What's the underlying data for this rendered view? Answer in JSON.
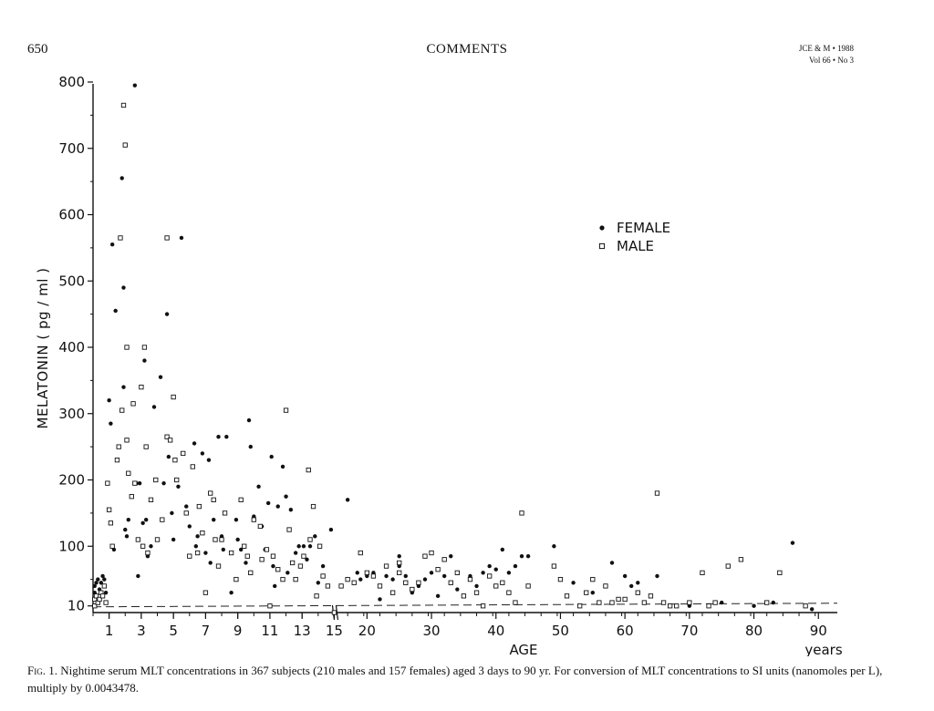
{
  "header": {
    "page_number": "650",
    "section": "COMMENTS",
    "journal_line1": "JCE & M • 1988",
    "journal_line2": "Vol 66 • No 3"
  },
  "caption": {
    "label": "Fig. 1.",
    "text": "Nightime serum MLT concentrations in 367 subjects (210 males and 157 females) aged 3 days to 90 yr. For conversion of MLT concentrations to SI units (nanomoles per L), multiply by 0.0043478."
  },
  "chart_data": {
    "type": "scatter",
    "ylabel": "MELATONIN ( pg / ml )",
    "xlabel": "AGE",
    "xunit": "years",
    "y_ticks": [
      10,
      100,
      200,
      300,
      400,
      500,
      600,
      700,
      800
    ],
    "x_ticks": [
      "1",
      "3",
      "5",
      "7",
      "9",
      "11",
      "13",
      "15",
      "20",
      "30",
      "40",
      "50",
      "60",
      "70",
      "80",
      "90"
    ],
    "x_scale": "linear in yr from 0 to 15, then compressed linear from 15 to 90",
    "ylim": [
      0,
      800
    ],
    "xlim": [
      0,
      90
    ],
    "legend": {
      "placement": "upper-right",
      "entries": [
        "FEMALE",
        "MALE"
      ]
    },
    "reference_line": {
      "style": "dashed",
      "y": 10
    },
    "series": [
      {
        "name": "FEMALE",
        "marker": "filled-circle",
        "points": [
          [
            0.1,
            30
          ],
          [
            0.1,
            40
          ],
          [
            0.2,
            45
          ],
          [
            0.3,
            50
          ],
          [
            0.4,
            35
          ],
          [
            0.5,
            45
          ],
          [
            0.6,
            55
          ],
          [
            0.7,
            50
          ],
          [
            0.8,
            30
          ],
          [
            1.0,
            320
          ],
          [
            1.1,
            285
          ],
          [
            1.2,
            555
          ],
          [
            1.3,
            95
          ],
          [
            1.4,
            455
          ],
          [
            1.8,
            655
          ],
          [
            1.9,
            490
          ],
          [
            1.9,
            340
          ],
          [
            2.0,
            125
          ],
          [
            2.1,
            115
          ],
          [
            2.2,
            140
          ],
          [
            2.6,
            795
          ],
          [
            2.7,
            195
          ],
          [
            2.8,
            55
          ],
          [
            2.9,
            195
          ],
          [
            3.1,
            135
          ],
          [
            3.2,
            380
          ],
          [
            3.3,
            140
          ],
          [
            3.4,
            85
          ],
          [
            3.6,
            100
          ],
          [
            3.8,
            310
          ],
          [
            4.2,
            355
          ],
          [
            4.4,
            195
          ],
          [
            4.6,
            450
          ],
          [
            4.7,
            235
          ],
          [
            4.9,
            150
          ],
          [
            5.0,
            110
          ],
          [
            5.3,
            190
          ],
          [
            5.5,
            565
          ],
          [
            5.6,
            240
          ],
          [
            5.8,
            160
          ],
          [
            6.0,
            130
          ],
          [
            6.3,
            255
          ],
          [
            6.4,
            100
          ],
          [
            6.5,
            115
          ],
          [
            6.8,
            240
          ],
          [
            7.0,
            90
          ],
          [
            7.2,
            230
          ],
          [
            7.3,
            75
          ],
          [
            7.5,
            140
          ],
          [
            7.8,
            265
          ],
          [
            8.0,
            115
          ],
          [
            8.1,
            95
          ],
          [
            8.3,
            265
          ],
          [
            8.6,
            30
          ],
          [
            8.9,
            140
          ],
          [
            9.0,
            110
          ],
          [
            9.2,
            95
          ],
          [
            9.5,
            75
          ],
          [
            9.7,
            290
          ],
          [
            9.8,
            250
          ],
          [
            10.0,
            145
          ],
          [
            10.3,
            190
          ],
          [
            10.5,
            130
          ],
          [
            10.7,
            95
          ],
          [
            10.9,
            165
          ],
          [
            11.1,
            235
          ],
          [
            11.2,
            70
          ],
          [
            11.3,
            40
          ],
          [
            11.5,
            160
          ],
          [
            11.8,
            220
          ],
          [
            12.0,
            175
          ],
          [
            12.1,
            60
          ],
          [
            12.3,
            155
          ],
          [
            12.6,
            90
          ],
          [
            12.8,
            100
          ],
          [
            13.1,
            100
          ],
          [
            13.3,
            80
          ],
          [
            13.5,
            100
          ],
          [
            13.8,
            115
          ],
          [
            14.0,
            45
          ],
          [
            14.3,
            70
          ],
          [
            14.8,
            125
          ],
          [
            15.0,
            0
          ],
          [
            17.0,
            170
          ],
          [
            18.5,
            60
          ],
          [
            19.0,
            50
          ],
          [
            20.0,
            55
          ],
          [
            21.0,
            60
          ],
          [
            22.0,
            20
          ],
          [
            23.0,
            55
          ],
          [
            24.0,
            50
          ],
          [
            25.0,
            85
          ],
          [
            25.0,
            70
          ],
          [
            26.0,
            55
          ],
          [
            27.0,
            30
          ],
          [
            28.0,
            40
          ],
          [
            29.0,
            50
          ],
          [
            30.0,
            60
          ],
          [
            31.0,
            25
          ],
          [
            32.0,
            55
          ],
          [
            33.0,
            85
          ],
          [
            34.0,
            35
          ],
          [
            36.0,
            55
          ],
          [
            37.0,
            40
          ],
          [
            38.0,
            60
          ],
          [
            39.0,
            70
          ],
          [
            40.0,
            65
          ],
          [
            41.0,
            95
          ],
          [
            42.0,
            60
          ],
          [
            43.0,
            70
          ],
          [
            44.0,
            85
          ],
          [
            45.0,
            85
          ],
          [
            49.0,
            100
          ],
          [
            52.0,
            45
          ],
          [
            55.0,
            30
          ],
          [
            58.0,
            75
          ],
          [
            60.0,
            55
          ],
          [
            61.0,
            40
          ],
          [
            62.0,
            45
          ],
          [
            65.0,
            55
          ],
          [
            70.0,
            10
          ],
          [
            75.0,
            15
          ],
          [
            80.0,
            10
          ],
          [
            83.0,
            15
          ],
          [
            86.0,
            105
          ],
          [
            88.0,
            10
          ],
          [
            89.0,
            5
          ]
        ]
      },
      {
        "name": "MALE",
        "marker": "open-square",
        "points": [
          [
            0.1,
            10
          ],
          [
            0.1,
            20
          ],
          [
            0.2,
            25
          ],
          [
            0.3,
            15
          ],
          [
            0.4,
            20
          ],
          [
            0.5,
            30
          ],
          [
            0.6,
            25
          ],
          [
            0.7,
            40
          ],
          [
            0.8,
            15
          ],
          [
            0.9,
            195
          ],
          [
            1.0,
            155
          ],
          [
            1.1,
            135
          ],
          [
            1.2,
            100
          ],
          [
            1.5,
            230
          ],
          [
            1.6,
            250
          ],
          [
            1.7,
            565
          ],
          [
            1.8,
            305
          ],
          [
            1.9,
            765
          ],
          [
            2.0,
            705
          ],
          [
            2.1,
            400
          ],
          [
            2.1,
            260
          ],
          [
            2.2,
            210
          ],
          [
            2.4,
            175
          ],
          [
            2.5,
            315
          ],
          [
            2.6,
            195
          ],
          [
            2.8,
            110
          ],
          [
            3.0,
            340
          ],
          [
            3.1,
            100
          ],
          [
            3.2,
            400
          ],
          [
            3.3,
            250
          ],
          [
            3.4,
            90
          ],
          [
            3.6,
            170
          ],
          [
            3.9,
            200
          ],
          [
            4.0,
            110
          ],
          [
            4.3,
            140
          ],
          [
            4.6,
            265
          ],
          [
            4.6,
            565
          ],
          [
            4.8,
            260
          ],
          [
            5.0,
            325
          ],
          [
            5.1,
            230
          ],
          [
            5.2,
            200
          ],
          [
            5.6,
            240
          ],
          [
            5.8,
            150
          ],
          [
            6.0,
            85
          ],
          [
            6.2,
            220
          ],
          [
            6.5,
            90
          ],
          [
            6.6,
            160
          ],
          [
            6.8,
            120
          ],
          [
            7.0,
            30
          ],
          [
            7.3,
            180
          ],
          [
            7.5,
            170
          ],
          [
            7.6,
            110
          ],
          [
            7.8,
            70
          ],
          [
            8.0,
            110
          ],
          [
            8.2,
            150
          ],
          [
            8.6,
            90
          ],
          [
            8.9,
            50
          ],
          [
            9.2,
            170
          ],
          [
            9.4,
            100
          ],
          [
            9.6,
            85
          ],
          [
            9.8,
            60
          ],
          [
            10.0,
            140
          ],
          [
            10.4,
            130
          ],
          [
            10.5,
            80
          ],
          [
            10.8,
            95
          ],
          [
            11.0,
            10
          ],
          [
            11.2,
            85
          ],
          [
            11.5,
            65
          ],
          [
            11.8,
            50
          ],
          [
            12.0,
            305
          ],
          [
            12.2,
            125
          ],
          [
            12.4,
            75
          ],
          [
            12.6,
            50
          ],
          [
            12.9,
            70
          ],
          [
            13.1,
            85
          ],
          [
            13.4,
            215
          ],
          [
            13.5,
            110
          ],
          [
            13.7,
            160
          ],
          [
            13.9,
            25
          ],
          [
            14.1,
            100
          ],
          [
            14.3,
            55
          ],
          [
            14.6,
            40
          ],
          [
            15.0,
            0
          ],
          [
            16.0,
            40
          ],
          [
            17.0,
            50
          ],
          [
            18.0,
            45
          ],
          [
            19.0,
            90
          ],
          [
            20.0,
            60
          ],
          [
            21.0,
            55
          ],
          [
            22.0,
            40
          ],
          [
            23.0,
            70
          ],
          [
            24.0,
            30
          ],
          [
            25.0,
            75
          ],
          [
            25.0,
            60
          ],
          [
            26.0,
            45
          ],
          [
            27.0,
            35
          ],
          [
            28.0,
            45
          ],
          [
            29.0,
            85
          ],
          [
            30.0,
            90
          ],
          [
            31.0,
            65
          ],
          [
            32.0,
            80
          ],
          [
            33.0,
            45
          ],
          [
            34.0,
            60
          ],
          [
            35.0,
            25
          ],
          [
            36.0,
            50
          ],
          [
            37.0,
            30
          ],
          [
            38.0,
            10
          ],
          [
            39.0,
            55
          ],
          [
            40.0,
            40
          ],
          [
            41.0,
            45
          ],
          [
            42.0,
            30
          ],
          [
            43.0,
            15
          ],
          [
            44.0,
            150
          ],
          [
            45.0,
            40
          ],
          [
            49.0,
            70
          ],
          [
            50.0,
            50
          ],
          [
            51.0,
            25
          ],
          [
            53.0,
            10
          ],
          [
            54.0,
            30
          ],
          [
            55.0,
            50
          ],
          [
            56.0,
            15
          ],
          [
            57.0,
            40
          ],
          [
            58.0,
            15
          ],
          [
            59.0,
            20
          ],
          [
            60.0,
            20
          ],
          [
            62.0,
            30
          ],
          [
            63.0,
            15
          ],
          [
            64.0,
            25
          ],
          [
            65.0,
            180
          ],
          [
            66.0,
            15
          ],
          [
            67.0,
            10
          ],
          [
            68.0,
            10
          ],
          [
            70.0,
            15
          ],
          [
            72.0,
            60
          ],
          [
            73.0,
            10
          ],
          [
            74.0,
            15
          ],
          [
            76.0,
            70
          ],
          [
            78.0,
            80
          ],
          [
            82.0,
            15
          ],
          [
            84.0,
            60
          ],
          [
            88.0,
            10
          ]
        ]
      }
    ]
  }
}
